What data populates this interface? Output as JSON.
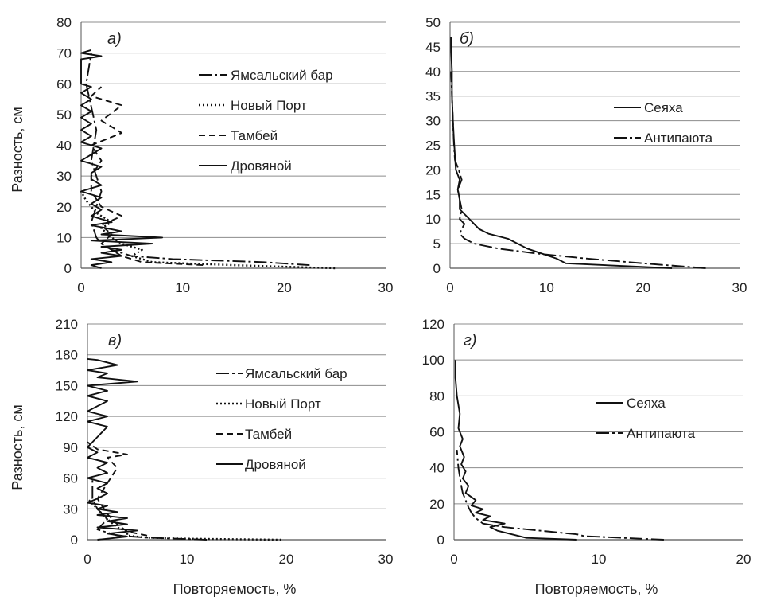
{
  "axes": {
    "ylabel_top": "Разность, см",
    "ylabel_bottom": "Разность, см",
    "xlabel_left": "Повторяемость, %",
    "xlabel_right": "Повторяемость, %"
  },
  "chart_data": [
    {
      "id": "a",
      "type": "line",
      "panel_label": "а)",
      "xlabel": "",
      "ylabel": "Разность, см",
      "xlim": [
        0,
        30
      ],
      "ylim": [
        0,
        80
      ],
      "xticks": [
        "0",
        "10",
        "20",
        "30"
      ],
      "yticks": [
        "0",
        "10",
        "20",
        "30",
        "40",
        "50",
        "60",
        "70",
        "80"
      ],
      "grid": "horizontal",
      "legend": "right",
      "series": [
        {
          "name": "Ямсальский бар",
          "dash": "dashdot",
          "points": [
            [
              22.5,
              1
            ],
            [
              18,
              2
            ],
            [
              9,
              3
            ],
            [
              5,
              4
            ],
            [
              3,
              6
            ],
            [
              2,
              8
            ],
            [
              1.5,
              10
            ],
            [
              1,
              15
            ],
            [
              2,
              25
            ],
            [
              1,
              35
            ],
            [
              1.5,
              45
            ],
            [
              0.5,
              60
            ],
            [
              1,
              70
            ]
          ]
        },
        {
          "name": "Новый Порт",
          "dash": "dotted",
          "points": [
            [
              25,
              0
            ],
            [
              15,
              1
            ],
            [
              7,
              2
            ],
            [
              5,
              4
            ],
            [
              6,
              6
            ],
            [
              4,
              8
            ],
            [
              3,
              10
            ],
            [
              2,
              13
            ],
            [
              3,
              15
            ],
            [
              1.5,
              18
            ],
            [
              0.5,
              22
            ],
            [
              0,
              25
            ]
          ]
        },
        {
          "name": "Тамбей",
          "dash": "dashed",
          "points": [
            [
              12,
              1
            ],
            [
              6,
              2
            ],
            [
              4,
              4
            ],
            [
              3,
              6
            ],
            [
              2,
              8
            ],
            [
              3,
              11
            ],
            [
              2,
              14
            ],
            [
              4,
              17
            ],
            [
              2,
              20
            ],
            [
              1,
              25
            ],
            [
              1,
              30
            ],
            [
              2,
              35
            ],
            [
              1,
              40
            ],
            [
              4,
              44
            ],
            [
              2,
              48
            ],
            [
              4,
              53
            ],
            [
              1,
              56
            ],
            [
              2,
              59
            ]
          ]
        },
        {
          "name": "Дровяной",
          "dash": "solid",
          "points": [
            [
              2,
              0
            ],
            [
              1,
              1
            ],
            [
              3,
              2
            ],
            [
              1,
              3
            ],
            [
              4,
              4
            ],
            [
              2,
              5
            ],
            [
              4,
              6
            ],
            [
              2,
              7
            ],
            [
              7,
              8
            ],
            [
              1,
              9
            ],
            [
              8,
              10
            ],
            [
              2,
              11
            ],
            [
              4,
              12
            ],
            [
              1,
              14
            ],
            [
              3,
              15
            ],
            [
              1,
              17
            ],
            [
              2,
              19
            ],
            [
              1,
              21
            ],
            [
              2,
              23
            ],
            [
              0,
              25
            ],
            [
              2,
              27
            ],
            [
              1,
              29
            ],
            [
              1,
              31
            ],
            [
              2,
              33
            ],
            [
              0,
              35
            ],
            [
              1,
              37
            ],
            [
              2,
              39
            ],
            [
              0,
              41
            ],
            [
              1,
              43
            ],
            [
              0,
              45
            ],
            [
              1,
              47
            ],
            [
              0,
              49
            ],
            [
              1,
              51
            ],
            [
              0,
              53
            ],
            [
              1,
              55
            ],
            [
              0,
              57
            ],
            [
              1,
              59
            ],
            [
              0,
              60
            ],
            [
              0,
              68
            ],
            [
              2,
              69
            ],
            [
              0,
              70
            ],
            [
              1,
              71
            ]
          ]
        }
      ]
    },
    {
      "id": "b",
      "type": "line",
      "panel_label": "б)",
      "xlabel": "",
      "ylabel": "",
      "xlim": [
        0,
        30
      ],
      "ylim": [
        0,
        50
      ],
      "xticks": [
        "0",
        "10",
        "20",
        "30"
      ],
      "yticks": [
        "0",
        "5",
        "10",
        "15",
        "20",
        "25",
        "30",
        "35",
        "40",
        "45",
        "50"
      ],
      "grid": "horizontal",
      "legend": "right",
      "series": [
        {
          "name": "Сеяха",
          "dash": "solid",
          "points": [
            [
              23,
              0
            ],
            [
              12,
              1
            ],
            [
              11,
              2
            ],
            [
              8,
              4
            ],
            [
              6,
              6
            ],
            [
              4,
              7
            ],
            [
              3,
              8
            ],
            [
              2.5,
              9
            ],
            [
              2,
              10
            ],
            [
              1.5,
              11
            ],
            [
              1,
              12
            ],
            [
              1,
              14
            ],
            [
              0.8,
              16
            ],
            [
              1,
              18
            ],
            [
              0.6,
              20
            ],
            [
              0.5,
              23
            ],
            [
              0.4,
              26
            ],
            [
              0.3,
              30
            ],
            [
              0.2,
              35
            ],
            [
              0.2,
              40
            ],
            [
              0.1,
              45
            ],
            [
              0.1,
              47
            ]
          ]
        },
        {
          "name": "Антипаюта",
          "dash": "dashdot",
          "points": [
            [
              26.5,
              0
            ],
            [
              20,
              1
            ],
            [
              14,
              2
            ],
            [
              9,
              3
            ],
            [
              5,
              4
            ],
            [
              2.5,
              5
            ],
            [
              1.5,
              6
            ],
            [
              1,
              7
            ],
            [
              1.2,
              8
            ],
            [
              1.5,
              9
            ],
            [
              1,
              10
            ],
            [
              1.2,
              12
            ],
            [
              1,
              14
            ],
            [
              0.8,
              16
            ],
            [
              1.2,
              18
            ],
            [
              0.9,
              20
            ],
            [
              0.5,
              22
            ],
            [
              0.4,
              25
            ],
            [
              0.3,
              30
            ],
            [
              0.2,
              35
            ],
            [
              0.1,
              40
            ]
          ]
        }
      ]
    },
    {
      "id": "v",
      "type": "line",
      "panel_label": "в)",
      "xlabel": "Повторяемость, %",
      "ylabel": "Разность, см",
      "xlim": [
        0,
        30
      ],
      "ylim": [
        0,
        210
      ],
      "xticks": [
        "0",
        "10",
        "20",
        "30"
      ],
      "yticks": [
        "0",
        "30",
        "60",
        "90",
        "120",
        "150",
        "180",
        "210"
      ],
      "grid": "horizontal",
      "legend": "right",
      "series": [
        {
          "name": "Ямсальский бар",
          "dash": "dashdot",
          "points": [
            [
              12,
              0
            ],
            [
              6,
              2
            ],
            [
              3,
              4
            ],
            [
              1,
              10
            ],
            [
              2,
              20
            ],
            [
              1,
              30
            ],
            [
              0.5,
              40
            ],
            [
              0.5,
              60
            ]
          ]
        },
        {
          "name": "Новый Порт",
          "dash": "dotted",
          "points": [
            [
              19.5,
              0
            ],
            [
              10,
              1
            ],
            [
              6,
              2
            ],
            [
              4,
              4
            ],
            [
              4,
              8
            ],
            [
              3,
              12
            ],
            [
              2,
              20
            ],
            [
              1,
              30
            ],
            [
              0,
              40
            ]
          ]
        },
        {
          "name": "Тамбей",
          "dash": "dashed",
          "points": [
            [
              6,
              4
            ],
            [
              4,
              8
            ],
            [
              3,
              15
            ],
            [
              2,
              25
            ],
            [
              1,
              40
            ],
            [
              2,
              55
            ],
            [
              3,
              70
            ],
            [
              2,
              80
            ],
            [
              4,
              83
            ],
            [
              1,
              88
            ],
            [
              0,
              95
            ]
          ]
        },
        {
          "name": "Дровяной",
          "dash": "solid",
          "points": [
            [
              1,
              0
            ],
            [
              4,
              3
            ],
            [
              2,
              6
            ],
            [
              5,
              9
            ],
            [
              1,
              12
            ],
            [
              4,
              15
            ],
            [
              2,
              18
            ],
            [
              4,
              21
            ],
            [
              1,
              24
            ],
            [
              3,
              27
            ],
            [
              1,
              30
            ],
            [
              2,
              33
            ],
            [
              0,
              36
            ],
            [
              1,
              40
            ],
            [
              2,
              45
            ],
            [
              1,
              50
            ],
            [
              2,
              55
            ],
            [
              0,
              60
            ],
            [
              2,
              65
            ],
            [
              1,
              70
            ],
            [
              2,
              75
            ],
            [
              0,
              80
            ],
            [
              1,
              85
            ],
            [
              0,
              90
            ],
            [
              1,
              100
            ],
            [
              2,
              110
            ],
            [
              0,
              115
            ],
            [
              2,
              120
            ],
            [
              0,
              125
            ],
            [
              1,
              130
            ],
            [
              2,
              135
            ],
            [
              0,
              140
            ],
            [
              2,
              145
            ],
            [
              0,
              150
            ],
            [
              5,
              154
            ],
            [
              1,
              158
            ],
            [
              2,
              162
            ],
            [
              0,
              165
            ],
            [
              3,
              170
            ],
            [
              1,
              175
            ],
            [
              0,
              176
            ]
          ]
        }
      ]
    },
    {
      "id": "g",
      "type": "line",
      "panel_label": "г)",
      "xlabel": "Повторяемость, %",
      "ylabel": "",
      "xlim": [
        0,
        20
      ],
      "ylim": [
        0,
        120
      ],
      "xticks": [
        "0",
        "10",
        "20"
      ],
      "yticks": [
        "0",
        "20",
        "40",
        "60",
        "80",
        "100",
        "120"
      ],
      "grid": "horizontal",
      "legend": "right",
      "series": [
        {
          "name": "Сеяха",
          "dash": "solid",
          "points": [
            [
              8.5,
              0
            ],
            [
              5,
              1
            ],
            [
              4,
              3
            ],
            [
              3,
              5
            ],
            [
              2.5,
              7
            ],
            [
              3.5,
              9
            ],
            [
              2,
              11
            ],
            [
              2.5,
              13
            ],
            [
              1.5,
              15
            ],
            [
              2,
              17
            ],
            [
              1.2,
              19
            ],
            [
              1.5,
              22
            ],
            [
              0.8,
              26
            ],
            [
              1,
              30
            ],
            [
              0.6,
              34
            ],
            [
              0.8,
              38
            ],
            [
              0.5,
              42
            ],
            [
              0.7,
              46
            ],
            [
              0.4,
              52
            ],
            [
              0.6,
              56
            ],
            [
              0.3,
              62
            ],
            [
              0.4,
              70
            ],
            [
              0.2,
              80
            ],
            [
              0.1,
              90
            ],
            [
              0.1,
              100
            ]
          ]
        },
        {
          "name": "Антипаюта",
          "dash": "dashdot",
          "points": [
            [
              14.5,
              0
            ],
            [
              9,
              2
            ],
            [
              8.5,
              3
            ],
            [
              6,
              5
            ],
            [
              3.5,
              7
            ],
            [
              2,
              9
            ],
            [
              1.5,
              12
            ],
            [
              1.2,
              15
            ],
            [
              1,
              18
            ],
            [
              0.8,
              22
            ],
            [
              0.6,
              26
            ],
            [
              0.5,
              30
            ],
            [
              0.4,
              35
            ],
            [
              0.3,
              40
            ],
            [
              0.2,
              50
            ]
          ]
        }
      ]
    }
  ]
}
